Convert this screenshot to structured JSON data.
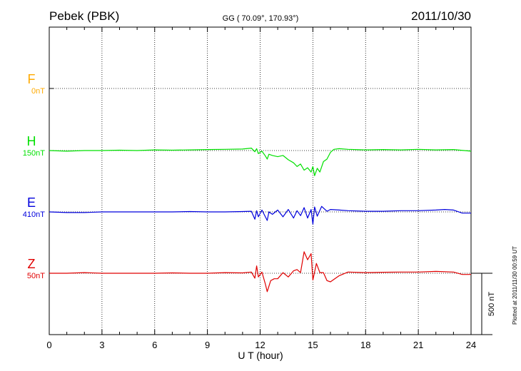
{
  "header": {
    "station": "Pebek (PBK)",
    "coords": "GG ( 70.09°, 170.93°)",
    "date": "2011/10/30"
  },
  "plotted_note": "Plotted at 2011/11/30 00:59 UT",
  "scale_label": "500 nT",
  "chart_data": {
    "type": "line",
    "title": "Pebek (PBK)",
    "xlabel": "U T (hour)",
    "ylabel": "",
    "xlim": [
      0,
      24
    ],
    "xticks": [
      "0",
      "3",
      "6",
      "9",
      "12",
      "15",
      "18",
      "21",
      "24"
    ],
    "grid": true,
    "scale_bar_nT": 500,
    "series": [
      {
        "name": "F",
        "offset_label": "0nT",
        "color": "#ffaa00",
        "x": [],
        "y": []
      },
      {
        "name": "H",
        "offset_label": "150nT",
        "color": "#00e000",
        "x": [
          0,
          1,
          2,
          3,
          4,
          5,
          6,
          7,
          8,
          9,
          10,
          11,
          11.5,
          11.7,
          11.8,
          11.9,
          12.1,
          12.3,
          12.4,
          12.5,
          12.7,
          13,
          13.3,
          13.6,
          13.9,
          14.1,
          14.3,
          14.5,
          14.7,
          14.9,
          15.0,
          15.1,
          15.25,
          15.4,
          15.6,
          15.8,
          16.0,
          16.2,
          16.5,
          17,
          18,
          19,
          20,
          21,
          22,
          23,
          24
        ],
        "y": [
          0,
          -5,
          0,
          0,
          3,
          0,
          5,
          3,
          5,
          8,
          10,
          12,
          20,
          -10,
          15,
          -25,
          -5,
          -45,
          -70,
          -30,
          -40,
          -50,
          -40,
          -75,
          -100,
          -130,
          -110,
          -160,
          -140,
          -175,
          -130,
          -205,
          -145,
          -175,
          -90,
          -70,
          -15,
          10,
          15,
          10,
          5,
          8,
          5,
          10,
          5,
          8,
          -5
        ]
      },
      {
        "name": "E",
        "offset_label": "410nT",
        "color": "#0000dd",
        "x": [
          0,
          1,
          2,
          3,
          4,
          5,
          6,
          7,
          8,
          9,
          10,
          11,
          11.5,
          11.7,
          11.8,
          11.9,
          12.1,
          12.4,
          12.5,
          12.7,
          13,
          13.3,
          13.6,
          13.9,
          14.1,
          14.3,
          14.5,
          14.7,
          14.9,
          15.0,
          15.1,
          15.25,
          15.5,
          15.8,
          16.0,
          16.5,
          17,
          18,
          19,
          20,
          21,
          22,
          22.5,
          23,
          23.5,
          24
        ],
        "y": [
          0,
          -5,
          -5,
          0,
          0,
          0,
          0,
          0,
          3,
          0,
          0,
          3,
          5,
          -60,
          10,
          -40,
          15,
          -70,
          0,
          -20,
          15,
          -40,
          20,
          -50,
          10,
          -30,
          35,
          -50,
          20,
          -100,
          40,
          -35,
          45,
          5,
          20,
          15,
          10,
          5,
          5,
          10,
          10,
          15,
          20,
          15,
          -10,
          -10
        ]
      },
      {
        "name": "Z",
        "offset_label": "50nT",
        "color": "#e00000",
        "x": [
          0,
          1,
          2,
          3,
          4,
          5,
          6,
          7,
          8,
          9,
          10,
          11,
          11.5,
          11.7,
          11.8,
          11.9,
          12.1,
          12.3,
          12.4,
          12.6,
          12.8,
          13,
          13.3,
          13.6,
          13.9,
          14.1,
          14.3,
          14.5,
          14.7,
          14.9,
          15.0,
          15.2,
          15.4,
          15.6,
          15.8,
          16.0,
          16.5,
          17,
          18,
          19,
          20,
          21,
          22,
          23,
          23.5,
          24
        ],
        "y": [
          0,
          0,
          5,
          0,
          0,
          0,
          0,
          3,
          0,
          0,
          5,
          3,
          10,
          -40,
          60,
          -30,
          10,
          -90,
          -150,
          -60,
          -45,
          -45,
          5,
          -30,
          20,
          30,
          5,
          175,
          110,
          160,
          -55,
          80,
          5,
          5,
          -60,
          -70,
          -20,
          10,
          5,
          8,
          10,
          10,
          15,
          10,
          -10,
          -10
        ]
      }
    ]
  }
}
